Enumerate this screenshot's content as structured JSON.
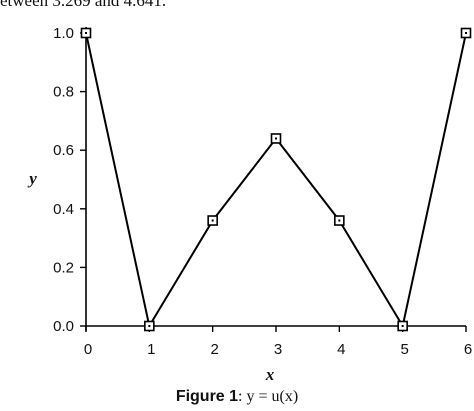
{
  "page": {
    "top_text": "etween 3.269 and 4.641."
  },
  "chart_data": {
    "type": "line",
    "title": "",
    "xlabel": "x",
    "ylabel": "y",
    "xlim": [
      0,
      6
    ],
    "ylim": [
      0,
      1.0
    ],
    "x_ticks": [
      "0",
      "1",
      "2",
      "3",
      "4",
      "5",
      "6"
    ],
    "y_ticks": [
      "0.0",
      "0.2",
      "0.4",
      "0.6",
      "0.8",
      "1.0"
    ],
    "x_tick_values": [
      0,
      1,
      2,
      3,
      4,
      5,
      6
    ],
    "y_tick_values": [
      0.0,
      0.2,
      0.4,
      0.6,
      0.8,
      1.0
    ],
    "grid": false,
    "series": [
      {
        "x": [
          0,
          1,
          2,
          3,
          4,
          5,
          6
        ],
        "y": [
          1.0,
          0.0,
          0.36,
          0.64,
          0.36,
          0.0,
          1.0
        ],
        "marker": "square",
        "color": "#000000"
      }
    ]
  },
  "caption": {
    "label": "Figure 1",
    "text": ": y = u(x)"
  }
}
